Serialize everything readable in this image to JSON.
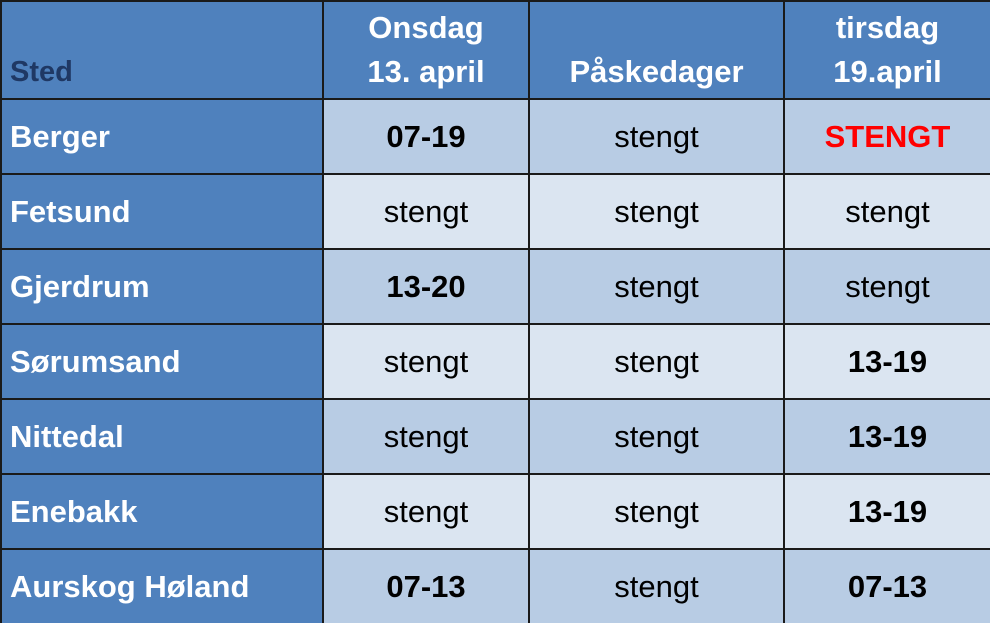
{
  "table": {
    "header": [
      {
        "lines": [
          "Sted"
        ]
      },
      {
        "lines": [
          "Onsdag",
          "13. april"
        ]
      },
      {
        "lines": [
          "Påskedager"
        ]
      },
      {
        "lines": [
          "tirsdag",
          "19.april"
        ]
      }
    ],
    "rows": [
      {
        "place": "Berger",
        "cells": [
          {
            "text": "07-19",
            "bold": true
          },
          {
            "text": "stengt",
            "bold": false
          },
          {
            "text": "STENGT",
            "bold": true,
            "color": "#ff0000"
          }
        ]
      },
      {
        "place": "Fetsund",
        "cells": [
          {
            "text": "stengt",
            "bold": false
          },
          {
            "text": "stengt",
            "bold": false
          },
          {
            "text": "stengt",
            "bold": false
          }
        ]
      },
      {
        "place": "Gjerdrum",
        "cells": [
          {
            "text": "13-20",
            "bold": true
          },
          {
            "text": "stengt",
            "bold": false
          },
          {
            "text": "stengt",
            "bold": false
          }
        ]
      },
      {
        "place": "Sørumsand",
        "cells": [
          {
            "text": "stengt",
            "bold": false
          },
          {
            "text": "stengt",
            "bold": false
          },
          {
            "text": "13-19",
            "bold": true
          }
        ]
      },
      {
        "place": "Nittedal",
        "cells": [
          {
            "text": "stengt",
            "bold": false
          },
          {
            "text": "stengt",
            "bold": false
          },
          {
            "text": "13-19",
            "bold": true
          }
        ]
      },
      {
        "place": "Enebakk",
        "cells": [
          {
            "text": "stengt",
            "bold": false
          },
          {
            "text": "stengt",
            "bold": false
          },
          {
            "text": "13-19",
            "bold": true
          }
        ]
      },
      {
        "place": "Aurskog Høland",
        "cells": [
          {
            "text": "07-13",
            "bold": true
          },
          {
            "text": "stengt",
            "bold": false
          },
          {
            "text": "07-13",
            "bold": true
          }
        ]
      }
    ]
  }
}
